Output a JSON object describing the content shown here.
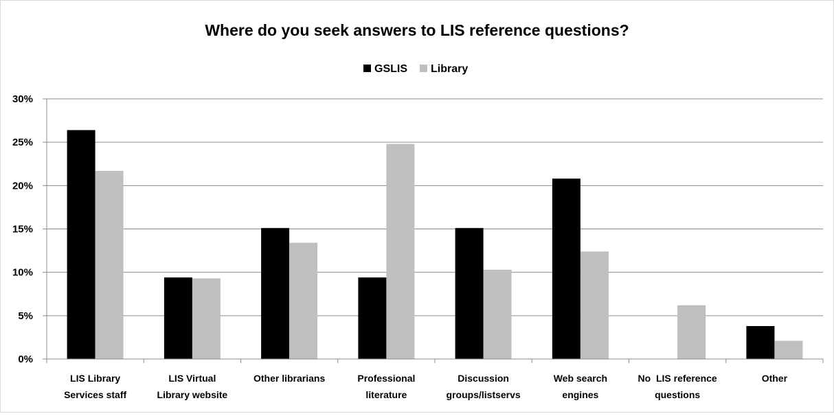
{
  "chart_data": {
    "type": "bar",
    "title": "Where do you seek answers to LIS reference questions?",
    "categories": [
      [
        "LIS Library",
        "Services staff"
      ],
      [
        "LIS Virtual",
        "Library website"
      ],
      [
        "Other librarians"
      ],
      [
        "Professional",
        "literature"
      ],
      [
        "Discussion",
        "groups/listservs"
      ],
      [
        "Web search",
        "engines"
      ],
      [
        "No  LIS reference",
        "questions"
      ],
      [
        "Other"
      ]
    ],
    "series": [
      {
        "name": "GSLIS",
        "color": "#000000",
        "values": [
          26.4,
          9.4,
          15.1,
          9.4,
          15.1,
          20.8,
          0,
          3.8
        ]
      },
      {
        "name": "Library",
        "color": "#bfbfbf",
        "values": [
          21.7,
          9.3,
          13.4,
          24.8,
          10.3,
          12.4,
          6.2,
          2.1
        ]
      }
    ],
    "yticks": [
      "0%",
      "5%",
      "10%",
      "15%",
      "20%",
      "25%",
      "30%"
    ],
    "ylim": [
      0,
      30
    ],
    "legend": "top-center",
    "grid": true
  }
}
